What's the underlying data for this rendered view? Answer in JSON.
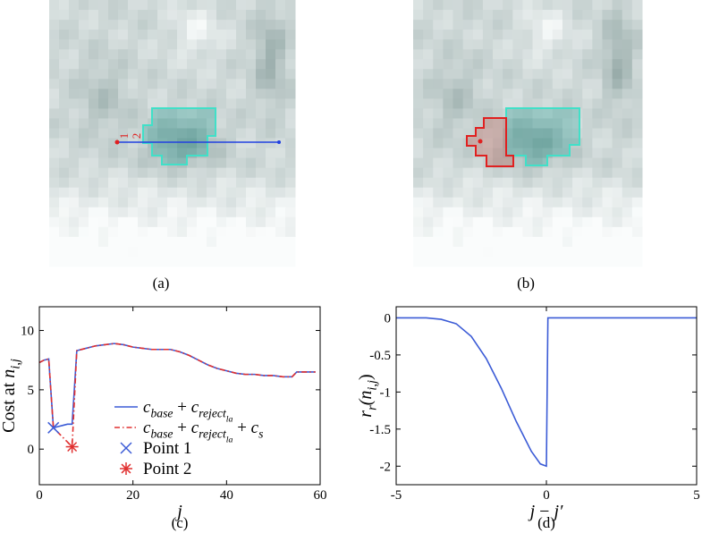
{
  "panels": [
    {
      "caption": "(a)",
      "labels": [
        "1",
        "2"
      ]
    },
    {
      "caption": "(b)"
    }
  ],
  "chart_data": [
    {
      "type": "line",
      "caption": "(c)",
      "xlabel": "j",
      "ylabel": "Cost at n_{i,j}",
      "xlim": [
        0,
        60
      ],
      "ylim": [
        -3,
        12
      ],
      "xticks": [
        0,
        20,
        40,
        60
      ],
      "yticks": [
        0,
        5,
        10
      ],
      "legend": "lower right",
      "x": [
        0,
        1,
        2,
        3,
        4,
        5,
        6,
        7,
        8,
        10,
        12,
        14,
        16,
        18,
        20,
        22,
        24,
        26,
        28,
        30,
        32,
        34,
        36,
        38,
        40,
        42,
        44,
        46,
        48,
        50,
        52,
        54,
        55,
        57,
        59
      ],
      "series": [
        {
          "name": "c_{base} + c_{reject_{la}}",
          "color": "#3b5bd6",
          "line": "solid",
          "marker": "none",
          "values": [
            7.3,
            7.5,
            7.6,
            1.8,
            1.9,
            2.0,
            2.1,
            2.1,
            8.3,
            8.5,
            8.7,
            8.8,
            8.9,
            8.8,
            8.6,
            8.5,
            8.4,
            8.4,
            8.4,
            8.2,
            7.9,
            7.5,
            7.1,
            6.8,
            6.6,
            6.4,
            6.3,
            6.3,
            6.2,
            6.2,
            6.1,
            6.1,
            6.5,
            6.5,
            6.5
          ]
        },
        {
          "name": "c_{base} + c_{reject_{la}} + c_{s}",
          "color": "#e03030",
          "line": "dashdot",
          "marker": "none",
          "values": [
            7.3,
            7.5,
            7.6,
            1.8,
            1.4,
            1.0,
            0.6,
            0.2,
            8.3,
            8.5,
            8.7,
            8.8,
            8.9,
            8.8,
            8.6,
            8.5,
            8.4,
            8.4,
            8.4,
            8.2,
            7.9,
            7.5,
            7.1,
            6.8,
            6.6,
            6.4,
            6.3,
            6.3,
            6.2,
            6.2,
            6.1,
            6.1,
            6.5,
            6.5,
            6.5
          ]
        },
        {
          "name": "Point 1",
          "color": "#3b5bd6",
          "line": "none",
          "marker": "x",
          "x": [
            3
          ],
          "values": [
            1.8
          ]
        },
        {
          "name": "Point 2",
          "color": "#e03030",
          "line": "none",
          "marker": "asterisk",
          "x": [
            7
          ],
          "values": [
            0.2
          ]
        }
      ]
    },
    {
      "type": "line",
      "caption": "(d)",
      "xlabel": "j − j′",
      "ylabel": "r_{r}(n_{i,j})",
      "xlim": [
        -5,
        5
      ],
      "ylim": [
        -2.25,
        0.15
      ],
      "xticks": [
        -5,
        0,
        5
      ],
      "yticks": [
        0,
        -0.5,
        -1,
        -1.5,
        -2
      ],
      "x": [
        -5,
        -4,
        -3.5,
        -3,
        -2.5,
        -2,
        -1.5,
        -1,
        -0.5,
        -0.2,
        0,
        0.05,
        5
      ],
      "series": [
        {
          "color": "#3b5bd6",
          "line": "solid",
          "marker": "none",
          "values": [
            0,
            0,
            -0.02,
            -0.08,
            -0.25,
            -0.55,
            -0.95,
            -1.4,
            -1.8,
            -1.97,
            -2,
            0,
            0
          ]
        }
      ]
    }
  ]
}
